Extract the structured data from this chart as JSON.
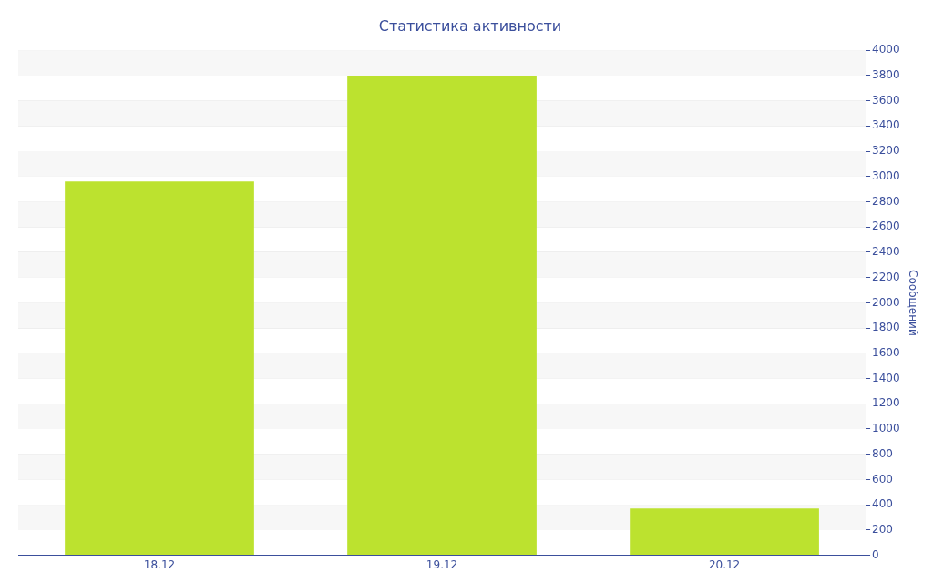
{
  "chart_data": {
    "type": "bar",
    "title": "Статистика активности",
    "ylabel": "Сообщений",
    "categories": [
      "18.12",
      "19.12",
      "20.12"
    ],
    "values": [
      2960,
      3800,
      370
    ],
    "color": "#bce22f",
    "ylim": [
      0,
      4000
    ],
    "yticks": [
      0,
      200,
      400,
      600,
      800,
      1000,
      1200,
      1400,
      1600,
      1800,
      2000,
      2200,
      2400,
      2600,
      2800,
      3000,
      3200,
      3400,
      3600,
      3800,
      4000
    ],
    "grid": "y",
    "legend": false
  }
}
